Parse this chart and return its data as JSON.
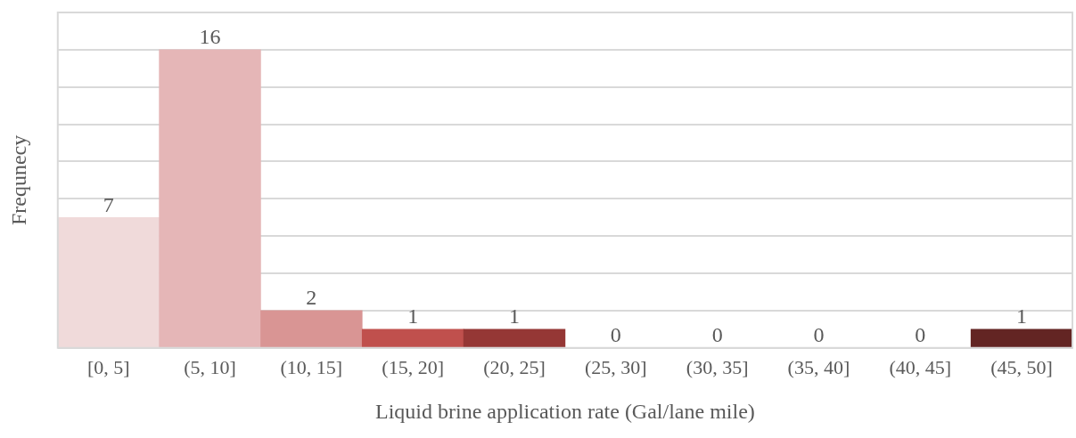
{
  "chart_data": {
    "type": "bar",
    "xlabel": "Liquid brine application rate (Gal/lane mile)",
    "ylabel": "Frequnecy",
    "categories": [
      "[0, 5]",
      "(5, 10]",
      "(10, 15]",
      "(15, 20]",
      "(20, 25]",
      "(25, 30]",
      "(30, 35]",
      "(35, 40]",
      "(40, 45]",
      "(45, 50]"
    ],
    "values": [
      7,
      16,
      2,
      1,
      1,
      0,
      0,
      0,
      0,
      1
    ],
    "colors": [
      "#f0dada",
      "#e5b6b7",
      "#d99594",
      "#c0504d",
      "#953735",
      "#8a3230",
      "#7f2e2c",
      "#762b29",
      "#6d2826",
      "#632523"
    ],
    "ylim": [
      0,
      18
    ],
    "yticks": [
      {
        "value": 0,
        "label": null
      },
      {
        "value": 2,
        "label": null
      },
      {
        "value": 4,
        "label": null
      },
      {
        "value": 6,
        "label": null
      },
      {
        "value": 8,
        "label": null
      },
      {
        "value": 10,
        "label": null
      },
      {
        "value": 12,
        "label": null
      },
      {
        "value": 14,
        "label": null
      },
      {
        "value": 16,
        "label": null
      },
      {
        "value": 18,
        "label": null
      }
    ],
    "grid": "y",
    "data_labels": true,
    "legend": false
  }
}
